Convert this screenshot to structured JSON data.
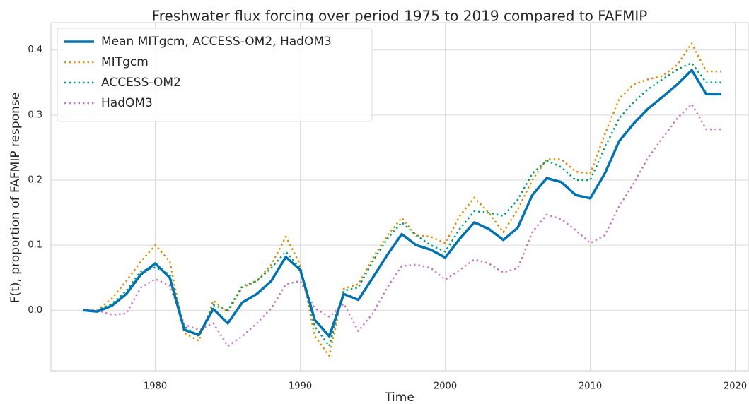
{
  "chart_data": {
    "type": "line",
    "title": "Freshwater flux forcing over period 1975 to 2019 compared to FAFMIP",
    "x_label": "Time",
    "y_label": "F(t), proportion of FAFMIP response",
    "x": [
      1975,
      1976,
      1977,
      1978,
      1979,
      1980,
      1981,
      1982,
      1983,
      1984,
      1985,
      1986,
      1987,
      1988,
      1989,
      1990,
      1991,
      1992,
      1993,
      1994,
      1995,
      1996,
      1997,
      1998,
      1999,
      2000,
      2001,
      2002,
      2003,
      2004,
      2005,
      2006,
      2007,
      2008,
      2009,
      2010,
      2011,
      2012,
      2013,
      2014,
      2015,
      2016,
      2017,
      2018,
      2019
    ],
    "series": [
      {
        "name": "Mean MITgcm, ACCESS-OM2, HadOM3",
        "color": "#0173b2",
        "linestyle": "solid",
        "linewidth": 3.5,
        "values": [
          0,
          -0.002,
          0.007,
          0.025,
          0.055,
          0.072,
          0.05,
          -0.03,
          -0.038,
          0.002,
          -0.02,
          0.012,
          0.025,
          0.045,
          0.082,
          0.062,
          -0.015,
          -0.04,
          0.025,
          0.016,
          0.05,
          0.085,
          0.117,
          0.1,
          0.093,
          0.081,
          0.11,
          0.135,
          0.125,
          0.108,
          0.127,
          0.177,
          0.203,
          0.197,
          0.177,
          0.172,
          0.21,
          0.26,
          0.287,
          0.31,
          0.328,
          0.347,
          0.369,
          0.332,
          0.332
        ]
      },
      {
        "name": "MITgcm",
        "color": "#de8f05",
        "linestyle": "dotted",
        "linewidth": 2.5,
        "values": [
          0,
          0,
          0.018,
          0.045,
          0.075,
          0.1,
          0.075,
          -0.035,
          -0.047,
          0.015,
          -0.003,
          0.035,
          0.045,
          0.07,
          0.113,
          0.07,
          -0.04,
          -0.07,
          0.033,
          0.04,
          0.08,
          0.115,
          0.142,
          0.115,
          0.113,
          0.103,
          0.145,
          0.173,
          0.15,
          0.12,
          0.155,
          0.2,
          0.232,
          0.232,
          0.213,
          0.21,
          0.27,
          0.325,
          0.347,
          0.355,
          0.36,
          0.377,
          0.41,
          0.367,
          0.367
        ]
      },
      {
        "name": "ACCESS-OM2",
        "color": "#029e73",
        "linestyle": "dotted",
        "linewidth": 2.5,
        "values": [
          0,
          0,
          0.01,
          0.03,
          0.06,
          0.066,
          0.055,
          -0.025,
          -0.04,
          0.008,
          0.0,
          0.037,
          0.045,
          0.065,
          0.09,
          0.065,
          -0.025,
          -0.055,
          0.03,
          0.035,
          0.075,
          0.11,
          0.135,
          0.115,
          0.1,
          0.09,
          0.125,
          0.152,
          0.15,
          0.145,
          0.17,
          0.21,
          0.23,
          0.22,
          0.2,
          0.2,
          0.25,
          0.295,
          0.32,
          0.34,
          0.355,
          0.37,
          0.38,
          0.35,
          0.35
        ]
      },
      {
        "name": "HadOM3",
        "color": "#cc78bc",
        "linestyle": "dotted",
        "linewidth": 2.5,
        "values": [
          0,
          0,
          -0.007,
          -0.005,
          0.035,
          0.048,
          0.038,
          -0.022,
          -0.03,
          -0.02,
          -0.055,
          -0.04,
          -0.02,
          0.003,
          0.04,
          0.045,
          0.003,
          -0.01,
          0.01,
          -0.032,
          -0.005,
          0.035,
          0.068,
          0.07,
          0.065,
          0.047,
          0.062,
          0.078,
          0.072,
          0.058,
          0.065,
          0.12,
          0.147,
          0.14,
          0.123,
          0.103,
          0.115,
          0.16,
          0.195,
          0.235,
          0.265,
          0.295,
          0.317,
          0.278,
          0.278
        ]
      }
    ],
    "xlim": [
      1972.8,
      2020.9
    ],
    "ylim": [
      -0.093,
      0.442
    ],
    "xticks": [
      1980,
      1990,
      2000,
      2010,
      2020
    ],
    "yticks": [
      {
        "value": 0,
        "label": "0.0"
      },
      0.1,
      0.2,
      0.3,
      0.4
    ],
    "grid": true,
    "legend": "upper left"
  }
}
